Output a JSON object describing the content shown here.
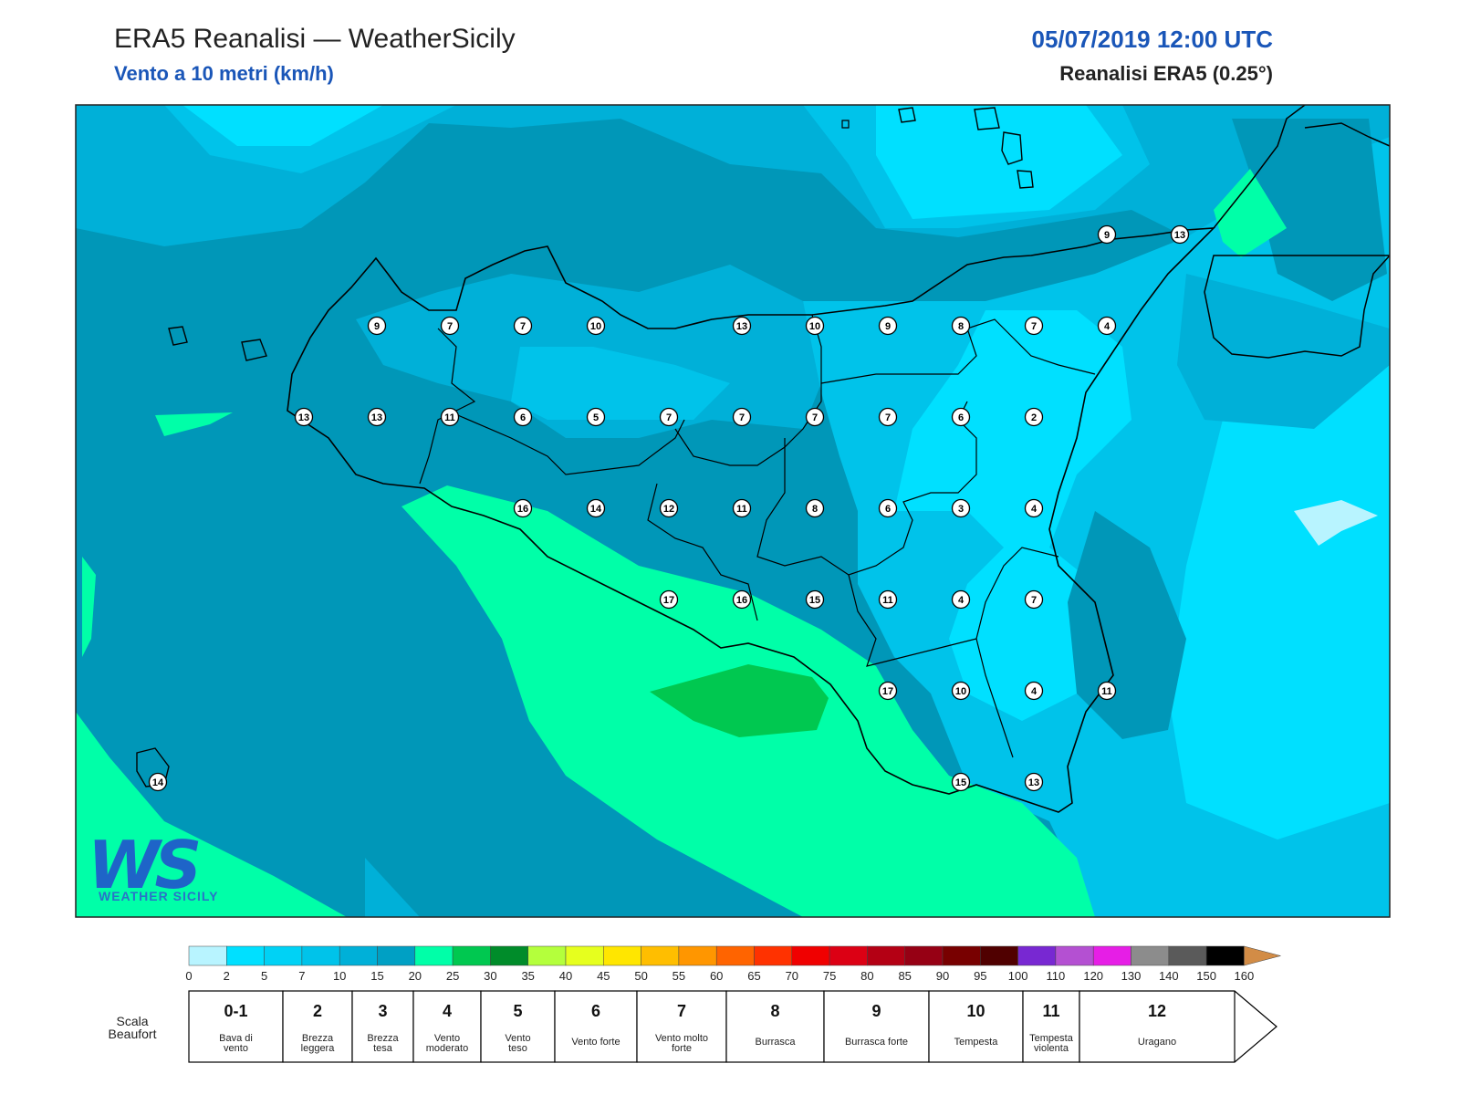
{
  "header": {
    "title": "ERA5 Reanalisi — WeatherSicily",
    "subtitle": "Vento a 10 metri (km/h)",
    "datetime": "05/07/2019 12:00 UTC",
    "source": "Reanalisi ERA5 (0.25°)"
  },
  "logo": {
    "mark": "WS",
    "brand": "WEATHER SICILY"
  },
  "map": {
    "region": "Sicilia",
    "colors": {
      "c5_7": "#00c3ea",
      "c7_10": "#00b0d8",
      "c10_15": "#0097b8",
      "c15_20": "#00ffa8",
      "c20_25": "#00c850",
      "c2_5": "#00e0ff",
      "c0_2": "#b8f4ff",
      "coast": "#000000"
    },
    "wind_labels": [
      {
        "lon": 13.18,
        "lat": 38.06,
        "value": "9"
      },
      {
        "lon": 13.53,
        "lat": 38.06,
        "value": "7"
      },
      {
        "lon": 13.88,
        "lat": 38.06,
        "value": "7"
      },
      {
        "lon": 14.23,
        "lat": 38.06,
        "value": "10"
      },
      {
        "lon": 14.93,
        "lat": 38.06,
        "value": "13"
      },
      {
        "lon": 15.28,
        "lat": 38.06,
        "value": "10"
      },
      {
        "lon": 15.63,
        "lat": 38.06,
        "value": "9"
      },
      {
        "lon": 15.98,
        "lat": 38.06,
        "value": "8"
      },
      {
        "lon": 16.33,
        "lat": 38.06,
        "value": "7"
      },
      {
        "lon": 16.68,
        "lat": 38.06,
        "value": "4"
      },
      {
        "lon": 16.68,
        "lat": 38.5,
        "value": "9"
      },
      {
        "lon": 17.03,
        "lat": 38.5,
        "value": "13"
      },
      {
        "lon": 12.83,
        "lat": 37.62,
        "value": "13"
      },
      {
        "lon": 13.18,
        "lat": 37.62,
        "value": "13"
      },
      {
        "lon": 13.53,
        "lat": 37.62,
        "value": "11"
      },
      {
        "lon": 13.88,
        "lat": 37.62,
        "value": "6"
      },
      {
        "lon": 14.23,
        "lat": 37.62,
        "value": "5"
      },
      {
        "lon": 14.58,
        "lat": 37.62,
        "value": "7"
      },
      {
        "lon": 14.93,
        "lat": 37.62,
        "value": "7"
      },
      {
        "lon": 15.28,
        "lat": 37.62,
        "value": "7"
      },
      {
        "lon": 15.63,
        "lat": 37.62,
        "value": "7"
      },
      {
        "lon": 15.98,
        "lat": 37.62,
        "value": "6"
      },
      {
        "lon": 16.33,
        "lat": 37.62,
        "value": "2"
      },
      {
        "lon": 13.88,
        "lat": 37.18,
        "value": "16"
      },
      {
        "lon": 14.23,
        "lat": 37.18,
        "value": "14"
      },
      {
        "lon": 14.58,
        "lat": 37.18,
        "value": "12"
      },
      {
        "lon": 14.93,
        "lat": 37.18,
        "value": "11"
      },
      {
        "lon": 15.28,
        "lat": 37.18,
        "value": "8"
      },
      {
        "lon": 15.63,
        "lat": 37.18,
        "value": "6"
      },
      {
        "lon": 15.98,
        "lat": 37.18,
        "value": "3"
      },
      {
        "lon": 16.33,
        "lat": 37.18,
        "value": "4"
      },
      {
        "lon": 14.58,
        "lat": 36.74,
        "value": "17"
      },
      {
        "lon": 14.93,
        "lat": 36.74,
        "value": "16"
      },
      {
        "lon": 15.28,
        "lat": 36.74,
        "value": "15"
      },
      {
        "lon": 15.63,
        "lat": 36.74,
        "value": "11"
      },
      {
        "lon": 15.98,
        "lat": 36.74,
        "value": "4"
      },
      {
        "lon": 16.33,
        "lat": 36.74,
        "value": "7"
      },
      {
        "lon": 15.63,
        "lat": 36.3,
        "value": "17"
      },
      {
        "lon": 15.98,
        "lat": 36.3,
        "value": "10"
      },
      {
        "lon": 16.33,
        "lat": 36.3,
        "value": "4"
      },
      {
        "lon": 16.68,
        "lat": 36.3,
        "value": "11"
      },
      {
        "lon": 15.98,
        "lat": 35.86,
        "value": "15"
      },
      {
        "lon": 16.33,
        "lat": 35.86,
        "value": "13"
      },
      {
        "lon": 12.13,
        "lat": 35.86,
        "value": "14"
      }
    ]
  },
  "colorbar": {
    "ticks": [
      "0",
      "2",
      "5",
      "7",
      "10",
      "15",
      "20",
      "25",
      "30",
      "35",
      "40",
      "45",
      "50",
      "55",
      "60",
      "65",
      "70",
      "75",
      "80",
      "85",
      "90",
      "95",
      "100",
      "110",
      "120",
      "130",
      "140",
      "150",
      "160"
    ],
    "colors": [
      "#b8f4ff",
      "#00e0ff",
      "#00d2f5",
      "#00c3ea",
      "#00b0d8",
      "#00a0c4",
      "#00ffa8",
      "#00c850",
      "#008c2a",
      "#b4ff3c",
      "#e6ff1e",
      "#ffe600",
      "#ffbe00",
      "#ff9600",
      "#ff6400",
      "#ff3200",
      "#f00000",
      "#dc0014",
      "#b40014",
      "#960014",
      "#780000",
      "#500000",
      "#7828d2",
      "#b450d2",
      "#e61ee6",
      "#8c8c8c",
      "#5a5a5a",
      "#000000",
      "#8c4628",
      "#d28c46"
    ]
  },
  "beaufort": {
    "title": "Scala Beaufort",
    "cells": [
      {
        "num": "0-1",
        "desc": "Bava di vento"
      },
      {
        "num": "2",
        "desc": "Brezza leggera"
      },
      {
        "num": "3",
        "desc": "Brezza tesa"
      },
      {
        "num": "4",
        "desc": "Vento moderato"
      },
      {
        "num": "5",
        "desc": "Vento teso"
      },
      {
        "num": "6",
        "desc": "Vento forte"
      },
      {
        "num": "7",
        "desc": "Vento molto forte"
      },
      {
        "num": "8",
        "desc": "Burrasca"
      },
      {
        "num": "9",
        "desc": "Burrasca forte"
      },
      {
        "num": "10",
        "desc": "Tempesta"
      },
      {
        "num": "11",
        "desc": "Tempesta violenta"
      },
      {
        "num": "12",
        "desc": "Uragano"
      }
    ]
  }
}
